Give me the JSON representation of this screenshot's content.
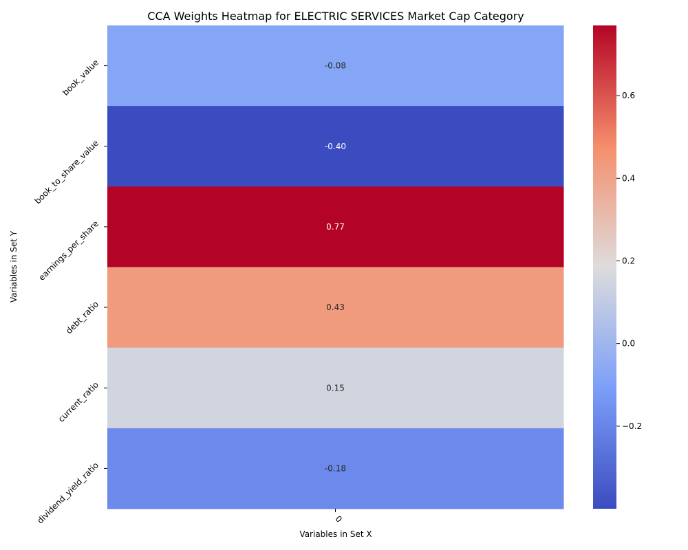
{
  "chart_data": {
    "type": "heatmap",
    "title": "CCA Weights Heatmap for ELECTRIC SERVICES Market Cap Category",
    "xlabel": "Variables in Set X",
    "ylabel": "Variables in Set Y",
    "x_categories": [
      "0"
    ],
    "y_categories": [
      "book_value",
      "book_to_share_value",
      "earnings_per_share",
      "debt_ratio",
      "current_ratio",
      "dividend_yield_ratio"
    ],
    "values": [
      [
        -0.08
      ],
      [
        -0.4
      ],
      [
        0.77
      ],
      [
        0.43
      ],
      [
        0.15
      ],
      [
        -0.18
      ]
    ],
    "value_labels": [
      "-0.08",
      "-0.40",
      "0.77",
      "0.43",
      "0.15",
      "-0.18"
    ],
    "colormap": "coolwarm",
    "color_range": [
      -0.4,
      0.77
    ],
    "colorbar_ticks": [
      -0.2,
      0.0,
      0.2,
      0.4,
      0.6
    ],
    "colorbar_tick_labels": [
      "−0.2",
      "0.0",
      "0.2",
      "0.4",
      "0.6"
    ],
    "colorbar_position": "right"
  }
}
